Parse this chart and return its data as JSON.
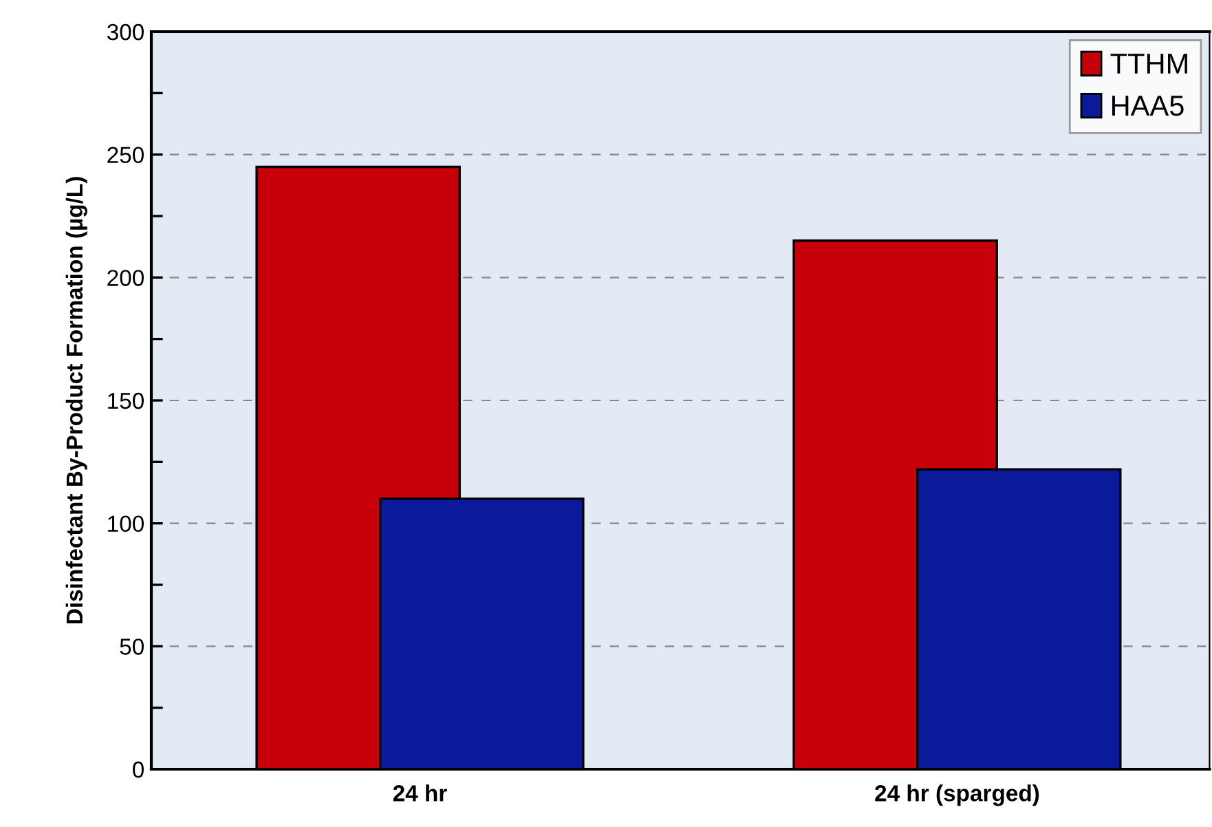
{
  "chart_data": {
    "type": "bar",
    "ylabel": "Disinfectant By-Product Formation (µg/L)",
    "categories": [
      "24 hr",
      "24 hr (sparged)"
    ],
    "series": [
      {
        "name": "TTHM",
        "color": "#c8000a",
        "values": [
          245,
          215
        ]
      },
      {
        "name": "HAA5",
        "color": "#0a1a9a",
        "values": [
          110,
          122
        ]
      }
    ],
    "ylim": [
      0,
      300
    ],
    "yticks": [
      0,
      {
        "value": 25,
        "label": null
      },
      50,
      {
        "value": 75,
        "label": null
      },
      100,
      {
        "value": 125,
        "label": null
      },
      150,
      {
        "value": 175,
        "label": null
      },
      200,
      {
        "value": 225,
        "label": null
      },
      250,
      {
        "value": 275,
        "label": null
      },
      300
    ],
    "grid": "y",
    "legend": "top right"
  }
}
